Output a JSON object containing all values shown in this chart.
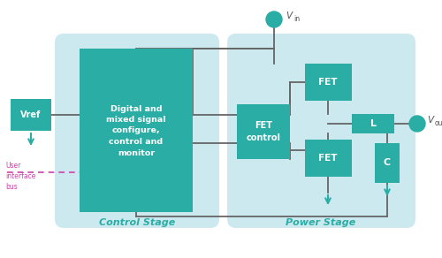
{
  "background_color": "#ffffff",
  "fig_width": 5.0,
  "fig_height": 2.92,
  "dpi": 100,
  "light_blue": "#cce9f0",
  "teal": "#2aada5",
  "wire_color": "#666666",
  "pink_color": "#cc44aa",
  "text_teal": "#2aada5",
  "white": "#ffffff",
  "gray_text": "#888888",
  "control_stage_label": "Control Stage",
  "power_stage_label": "Power Stage",
  "vref_label": "Vref",
  "vin_label": "Vin",
  "vout_label": "Vout",
  "digital_label": "Digital and\nmixed signal\nconfigure,\ncontrol and\nmonitor",
  "fet_control_label": "FET\ncontrol",
  "fet_top_label": "FET",
  "fet_bot_label": "FET",
  "l_label": "L",
  "c_label": "C",
  "user_bus_label": "User\ninterface\nbus"
}
